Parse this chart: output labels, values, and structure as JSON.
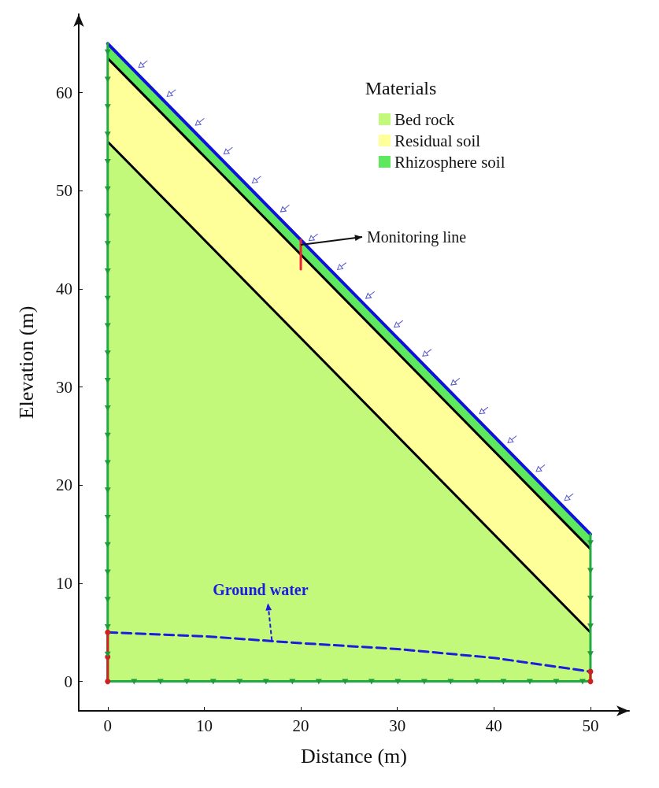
{
  "chart_data": {
    "type": "area",
    "stacked": true,
    "xlabel": "Distance (m)",
    "ylabel": "Elevation (m)",
    "legend_title": "Materials",
    "legend": "top right",
    "grid": false,
    "marker": "none",
    "x": [
      0,
      50
    ],
    "xlim": [
      -3,
      54
    ],
    "xticks": [
      0,
      10,
      20,
      30,
      40,
      50
    ],
    "ylim": [
      -3,
      68
    ],
    "yticks": [
      0,
      10,
      20,
      30,
      40,
      50,
      60
    ],
    "series": [
      {
        "name": "Bed rock",
        "color": "#c2f97a",
        "values": [
          55,
          5
        ]
      },
      {
        "name": "Residual soil",
        "color": "#ffff99",
        "values": [
          8.5,
          8.5
        ]
      },
      {
        "name": "Rhizosphere soil",
        "color": "#5ee85e",
        "values": [
          1.5,
          1.5
        ]
      },
      {
        "type": "line",
        "color": "#1010dd",
        "x": [
          0,
          50
        ],
        "values": [
          65,
          15
        ],
        "line_style": "solid",
        "marker": "none"
      },
      {
        "type": "line",
        "color": "#1c1ce0",
        "x": [
          0,
          10,
          20,
          30,
          40,
          50
        ],
        "values": [
          5,
          4.6,
          3.9,
          3.3,
          2.4,
          1.0
        ],
        "line_style": "dashed",
        "marker": "none"
      },
      {
        "type": "line",
        "color": "#22aa44",
        "x": [
          0,
          0
        ],
        "values": [
          0,
          65
        ],
        "line_style": "solid",
        "marker": "none"
      },
      {
        "type": "line",
        "color": "#22aa44",
        "x": [
          0,
          50
        ],
        "values": [
          0,
          0
        ],
        "line_style": "solid",
        "marker": "none"
      },
      {
        "type": "line",
        "color": "#22aa44",
        "x": [
          50,
          50
        ],
        "values": [
          0,
          15
        ],
        "line_style": "solid",
        "marker": "none"
      },
      {
        "type": "line",
        "color": "#cc2222",
        "x": [
          0,
          0,
          0
        ],
        "values": [
          0,
          2.5,
          5
        ],
        "line_style": "solid",
        "marker": "circle"
      },
      {
        "type": "line",
        "color": "#cc2222",
        "x": [
          50,
          50
        ],
        "values": [
          0,
          1
        ],
        "line_style": "solid",
        "marker": "circle"
      },
      {
        "type": "line",
        "color": "#ee2233",
        "x": [
          20,
          20
        ],
        "values": [
          42,
          45
        ],
        "line_style": "solid",
        "marker": "none"
      }
    ],
    "annotations": [
      {
        "text": "Monitoring line",
        "x": 20,
        "y": 44.5
      },
      {
        "text": "Ground water",
        "x": 17,
        "y": 4.2
      }
    ]
  }
}
